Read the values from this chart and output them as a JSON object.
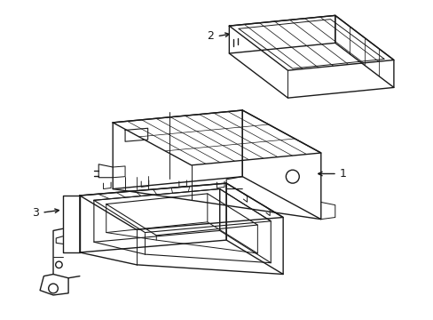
{
  "background_color": "#ffffff",
  "line_color": "#1a1a1a",
  "line_width": 1.0,
  "label_1": "1",
  "label_2": "2",
  "label_3": "3",
  "label_fontsize": 9,
  "figsize": [
    4.89,
    3.6
  ],
  "dpi": 100
}
